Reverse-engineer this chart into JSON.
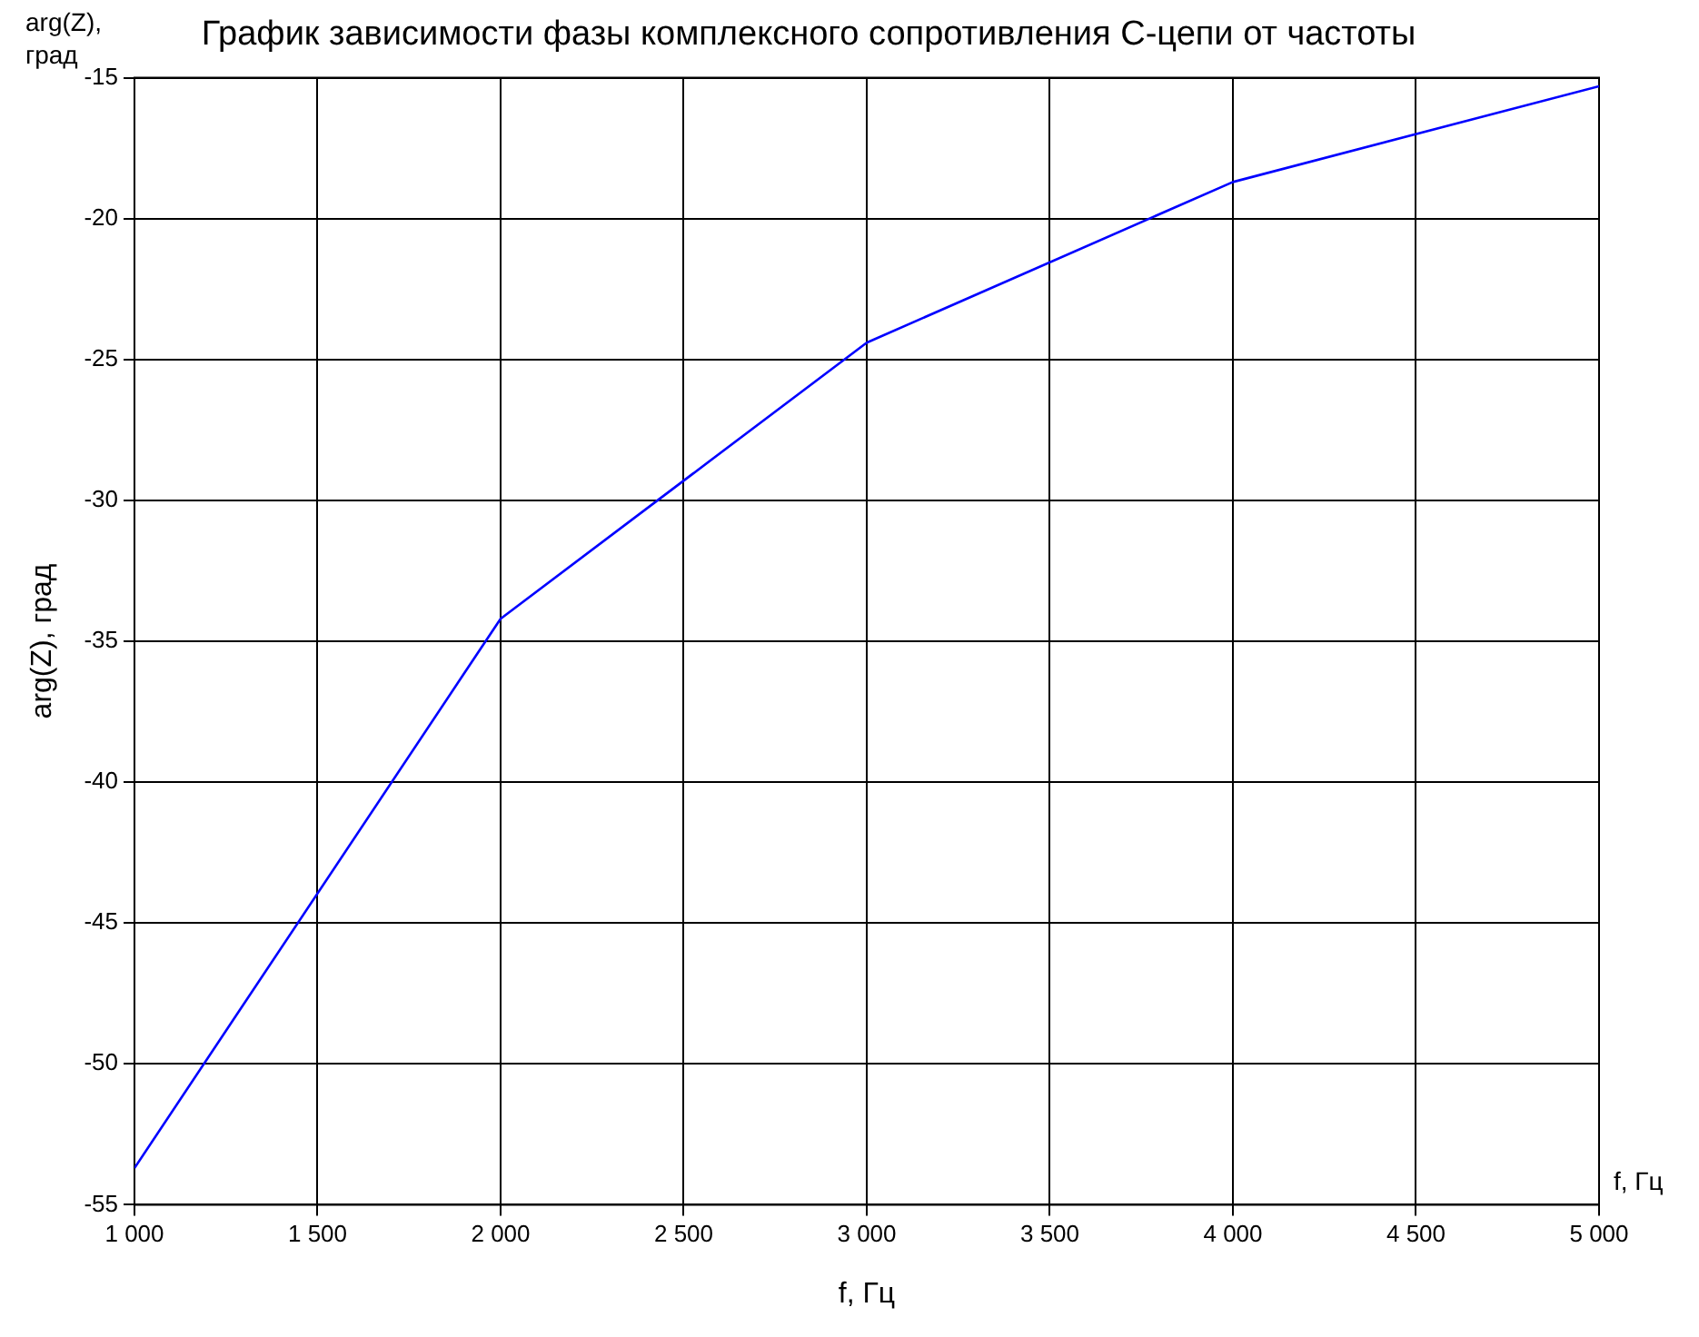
{
  "chart_data": {
    "type": "line",
    "title": "График зависимости фазы комплексного сопротивления С-цепи от частоты",
    "xlabel": "f, Гц",
    "ylabel": "arg(Z), град",
    "annotations": [
      "arg(Z),\nград",
      "f, Гц"
    ],
    "x": [
      1000,
      2000,
      3000,
      4000,
      5000
    ],
    "series": [
      {
        "color": "#0000ff",
        "values": [
          -53.7,
          -34.2,
          -24.4,
          -18.7,
          -15.3
        ]
      }
    ],
    "xlim": [
      1000,
      5000
    ],
    "xticks": [
      {
        "value": 1000,
        "label": "1 000"
      },
      {
        "value": 1500,
        "label": "1 500"
      },
      {
        "value": 2000,
        "label": "2 000"
      },
      {
        "value": 2500,
        "label": "2 500"
      },
      {
        "value": 3000,
        "label": "3 000"
      },
      {
        "value": 3500,
        "label": "3 500"
      },
      {
        "value": 4000,
        "label": "4 000"
      },
      {
        "value": 4500,
        "label": "4 500"
      },
      {
        "value": 5000,
        "label": "5 000"
      }
    ],
    "ylim": [
      -55,
      -15
    ],
    "yticks": [
      -55,
      -50,
      -45,
      -40,
      -35,
      -30,
      -25,
      -20,
      -15
    ],
    "grid": true,
    "legend": false,
    "marker": "none",
    "line_style": "solid"
  }
}
